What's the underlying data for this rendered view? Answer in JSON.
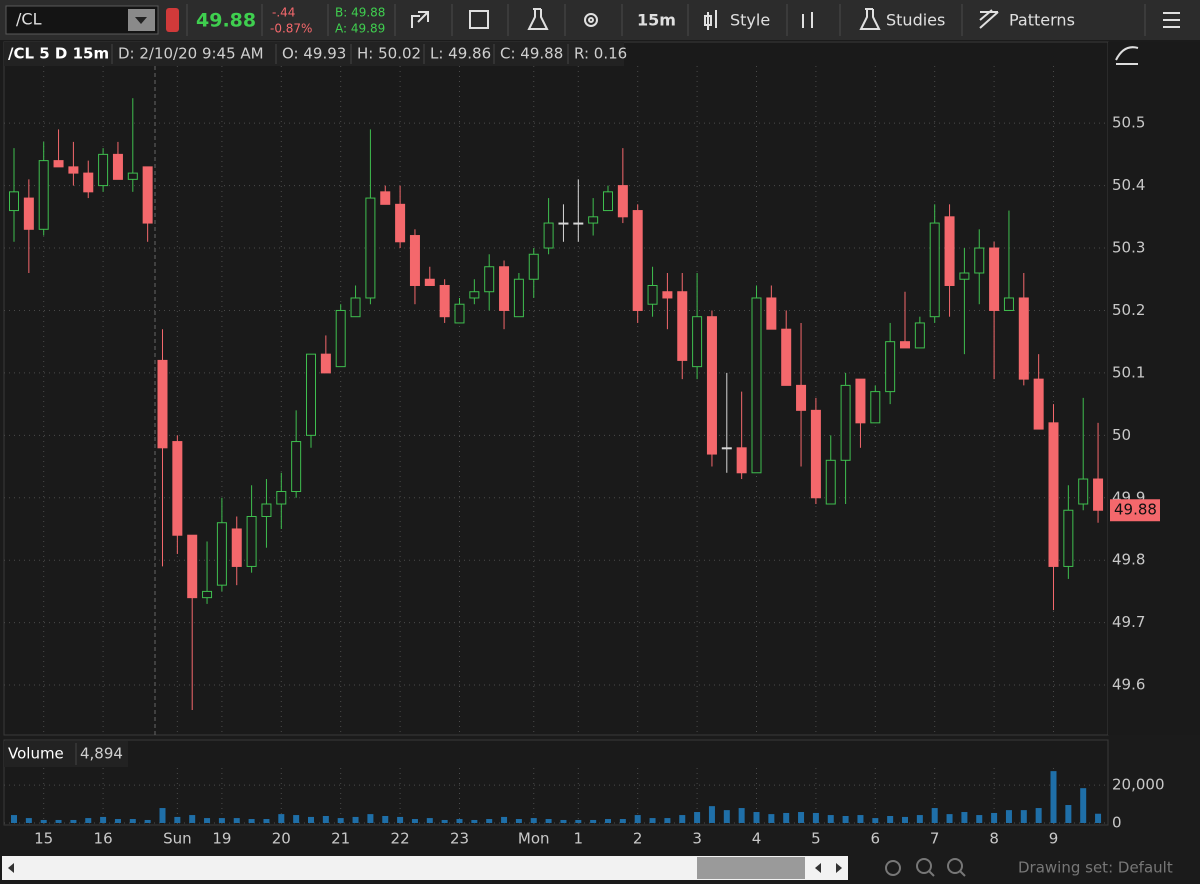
{
  "toolbar": {
    "symbol": "/CL",
    "last": "49.88",
    "change": "-.44",
    "change_pct": "-0.87%",
    "bid": "B: 49.88",
    "ask": "A: 49.89",
    "period": "15m",
    "style": "Style",
    "studies": "Studies",
    "patterns": "Patterns"
  },
  "header": {
    "symbol_period": "/CL 5 D 15m",
    "date": "D: 2/10/20 9:45 AM",
    "open": "O: 49.93",
    "high": "H: 50.02",
    "low": "L: 49.86",
    "close": "C: 49.88",
    "range": "R: 0.16"
  },
  "volume_pane": {
    "title": "Volume",
    "readout": "4,894"
  },
  "footer": {
    "drawing_set": "Drawing set: Default"
  },
  "chart_data": {
    "type": "candlestick",
    "categories": [
      null,
      null,
      "15",
      null,
      null,
      null,
      "16",
      null,
      null,
      null,
      null,
      "Sun",
      null,
      null,
      "19",
      null,
      null,
      null,
      "20",
      null,
      null,
      null,
      "21",
      null,
      null,
      null,
      "22",
      null,
      null,
      null,
      "23",
      null,
      null,
      null,
      null,
      "Mon",
      null,
      null,
      "1",
      null,
      null,
      null,
      "2",
      null,
      null,
      null,
      "3",
      null,
      null,
      null,
      "4",
      null,
      null,
      null,
      "5",
      null,
      null,
      null,
      "6",
      null,
      null,
      null,
      "7",
      null,
      null,
      null,
      "8",
      null,
      null,
      null,
      "9",
      null,
      null,
      null
    ],
    "open": [
      50.36,
      50.38,
      50.33,
      50.44,
      50.43,
      50.42,
      50.4,
      50.45,
      50.41,
      50.43,
      50.12,
      49.99,
      49.84,
      49.74,
      49.76,
      49.85,
      49.79,
      49.87,
      49.89,
      49.91,
      50.0,
      50.13,
      50.11,
      50.19,
      50.22,
      50.39,
      50.37,
      50.32,
      50.25,
      50.24,
      50.18,
      50.22,
      50.23,
      50.27,
      50.19,
      50.25,
      50.3,
      50.34,
      50.34,
      50.34,
      50.36,
      50.4,
      50.36,
      50.21,
      50.23,
      50.23,
      50.11,
      50.19,
      49.98,
      49.98,
      49.94,
      50.22,
      50.17,
      50.08,
      50.04,
      49.89,
      49.96,
      50.09,
      50.02,
      50.07,
      50.15,
      50.14,
      50.19,
      50.35,
      50.25,
      50.26,
      50.3,
      50.2,
      50.22,
      50.09,
      50.02,
      49.79,
      49.89,
      49.93
    ],
    "high": [
      50.46,
      50.41,
      50.47,
      50.49,
      50.47,
      50.44,
      50.46,
      50.47,
      50.54,
      50.43,
      50.17,
      50.0,
      49.84,
      49.83,
      49.9,
      49.87,
      49.92,
      49.93,
      49.94,
      50.04,
      50.13,
      50.16,
      50.21,
      50.24,
      50.49,
      50.4,
      50.4,
      50.33,
      50.27,
      50.25,
      50.22,
      50.25,
      50.29,
      50.28,
      50.26,
      50.3,
      50.38,
      50.37,
      50.41,
      50.38,
      50.4,
      50.46,
      50.37,
      50.27,
      50.26,
      50.26,
      50.26,
      50.2,
      50.1,
      50.07,
      50.24,
      50.24,
      50.2,
      50.18,
      50.06,
      50.0,
      50.1,
      50.09,
      50.08,
      50.18,
      50.23,
      50.19,
      50.37,
      50.37,
      50.3,
      50.33,
      50.31,
      50.36,
      50.26,
      50.13,
      50.05,
      49.92,
      50.06,
      50.02
    ],
    "low": [
      50.31,
      50.26,
      50.32,
      50.43,
      50.4,
      50.38,
      50.39,
      50.41,
      50.39,
      50.31,
      49.79,
      49.81,
      49.56,
      49.73,
      49.75,
      49.76,
      49.78,
      49.82,
      49.85,
      49.9,
      49.98,
      50.1,
      50.11,
      50.19,
      50.21,
      50.37,
      50.3,
      50.21,
      50.24,
      50.18,
      50.18,
      50.21,
      50.2,
      50.17,
      50.19,
      50.22,
      50.29,
      50.31,
      50.31,
      50.32,
      50.36,
      50.34,
      50.18,
      50.19,
      50.17,
      50.09,
      50.09,
      49.95,
      49.94,
      49.93,
      49.94,
      50.17,
      50.08,
      49.95,
      49.89,
      49.89,
      49.89,
      49.98,
      50.02,
      50.05,
      50.14,
      50.14,
      50.18,
      50.19,
      50.13,
      50.21,
      50.09,
      50.2,
      50.08,
      50.01,
      49.72,
      49.77,
      49.88,
      49.86
    ],
    "close": [
      50.39,
      50.33,
      50.44,
      50.43,
      50.42,
      50.39,
      50.45,
      50.41,
      50.42,
      50.34,
      49.98,
      49.84,
      49.74,
      49.75,
      49.86,
      49.79,
      49.87,
      49.89,
      49.91,
      49.99,
      50.13,
      50.1,
      50.2,
      50.22,
      50.38,
      50.37,
      50.31,
      50.24,
      50.24,
      50.19,
      50.21,
      50.23,
      50.27,
      50.2,
      50.25,
      50.29,
      50.34,
      50.34,
      50.34,
      50.35,
      50.39,
      50.35,
      50.2,
      50.24,
      50.22,
      50.12,
      50.19,
      49.97,
      49.98,
      49.94,
      50.22,
      50.17,
      50.08,
      50.04,
      49.9,
      49.96,
      50.08,
      50.02,
      50.07,
      50.15,
      50.14,
      50.18,
      50.34,
      50.24,
      50.26,
      50.3,
      50.2,
      50.22,
      50.09,
      50.01,
      49.79,
      49.88,
      49.93,
      49.88
    ],
    "volume": [
      4200,
      2600,
      1600,
      1600,
      1600,
      2600,
      3200,
      2100,
      2100,
      1600,
      7900,
      3200,
      4200,
      2600,
      2600,
      2600,
      2100,
      2100,
      4700,
      4200,
      3200,
      3700,
      2600,
      3200,
      4700,
      3700,
      3200,
      2100,
      2600,
      1600,
      2100,
      1600,
      2100,
      3200,
      2100,
      2600,
      2100,
      1600,
      1600,
      1600,
      2100,
      2100,
      4200,
      2600,
      2600,
      4200,
      5800,
      8900,
      6800,
      7900,
      5800,
      4700,
      5300,
      5800,
      5300,
      4200,
      3700,
      4200,
      2600,
      3700,
      3200,
      4200,
      7900,
      4700,
      5800,
      4200,
      5300,
      6800,
      6800,
      7900,
      27400,
      9500,
      18400,
      4894
    ],
    "up_color": "#3fbf4f",
    "down_color": "#f4686c",
    "volume_color": "#1f6fa8",
    "ylim": [
      49.52,
      50.63
    ],
    "yticks": [
      49.6,
      49.7,
      49.8,
      49.9,
      50,
      50.1,
      50.2,
      50.3,
      50.4,
      50.5
    ],
    "volume_ylim": [
      0,
      28000
    ],
    "volume_yticks": [
      0,
      {
        "value": 20000,
        "label": "20,000"
      }
    ],
    "grid": true
  }
}
